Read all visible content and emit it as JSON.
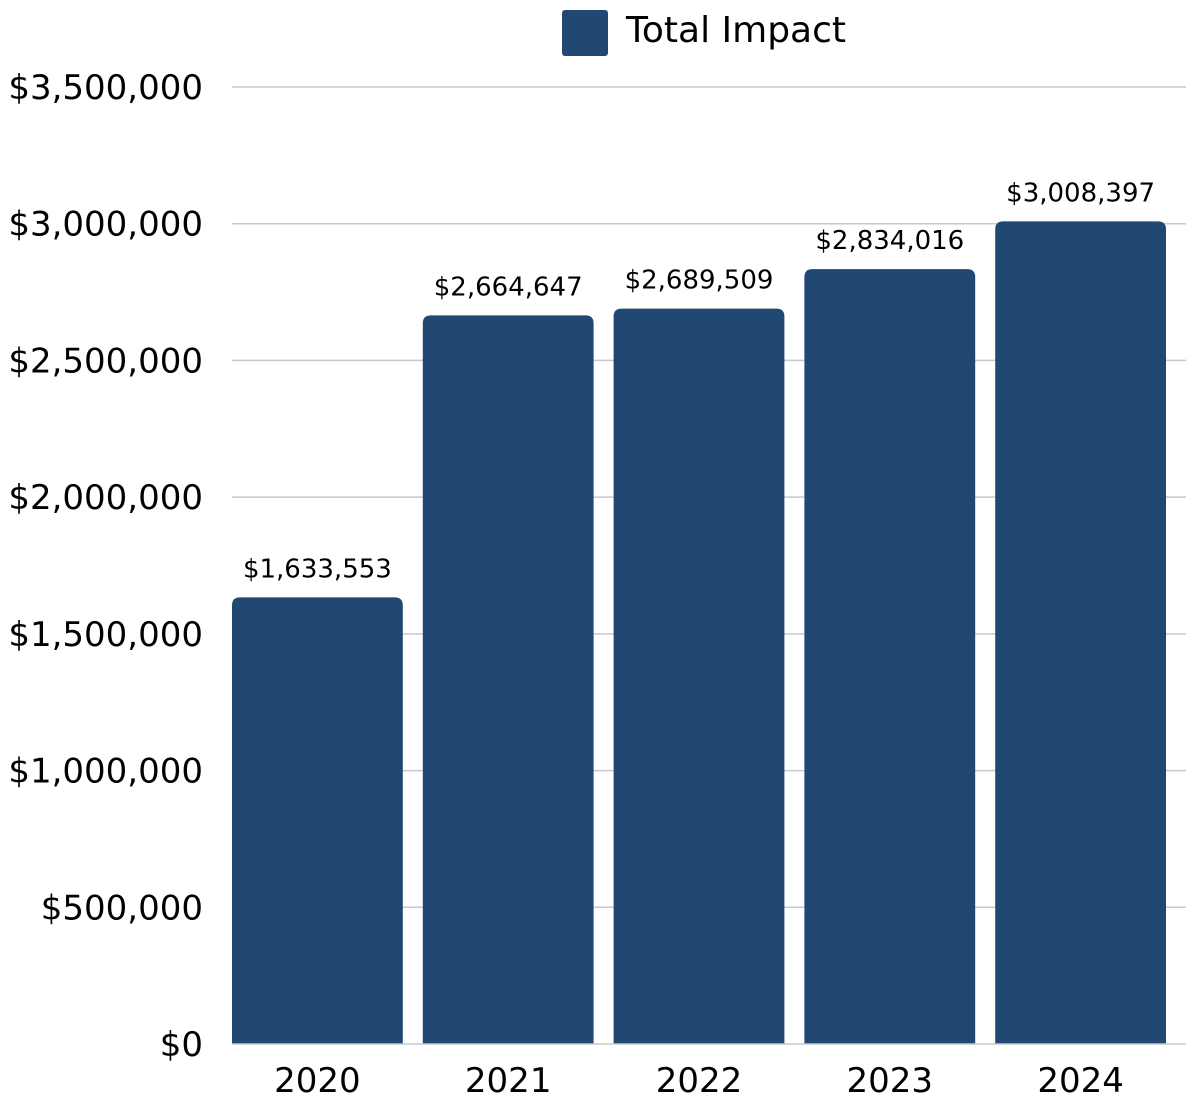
{
  "chart_data": {
    "type": "bar",
    "categories": [
      "2020",
      "2021",
      "2022",
      "2023",
      "2024"
    ],
    "series": [
      {
        "name": "Total Impact",
        "values": [
          1633553,
          2664647,
          2689509,
          2834016,
          3008397
        ],
        "data_labels": [
          "$1,633,553",
          "$2,664,647",
          "$2,689,509",
          "$2,834,016",
          "$3,008,397"
        ],
        "color": "#214872"
      }
    ],
    "y_ticks": [
      {
        "value": 0,
        "label": "$0"
      },
      {
        "value": 500000,
        "label": "$500,000"
      },
      {
        "value": 1000000,
        "label": "$1,000,000"
      },
      {
        "value": 1500000,
        "label": "$1,500,000"
      },
      {
        "value": 2000000,
        "label": "$2,000,000"
      },
      {
        "value": 2500000,
        "label": "$2,500,000"
      },
      {
        "value": 3000000,
        "label": "$3,000,000"
      },
      {
        "value": 3500000,
        "label": "$3,500,000"
      }
    ],
    "ylim": [
      0,
      3500000
    ],
    "grid": true,
    "legend_position": "top-center",
    "title": "",
    "xlabel": "",
    "ylabel": ""
  }
}
